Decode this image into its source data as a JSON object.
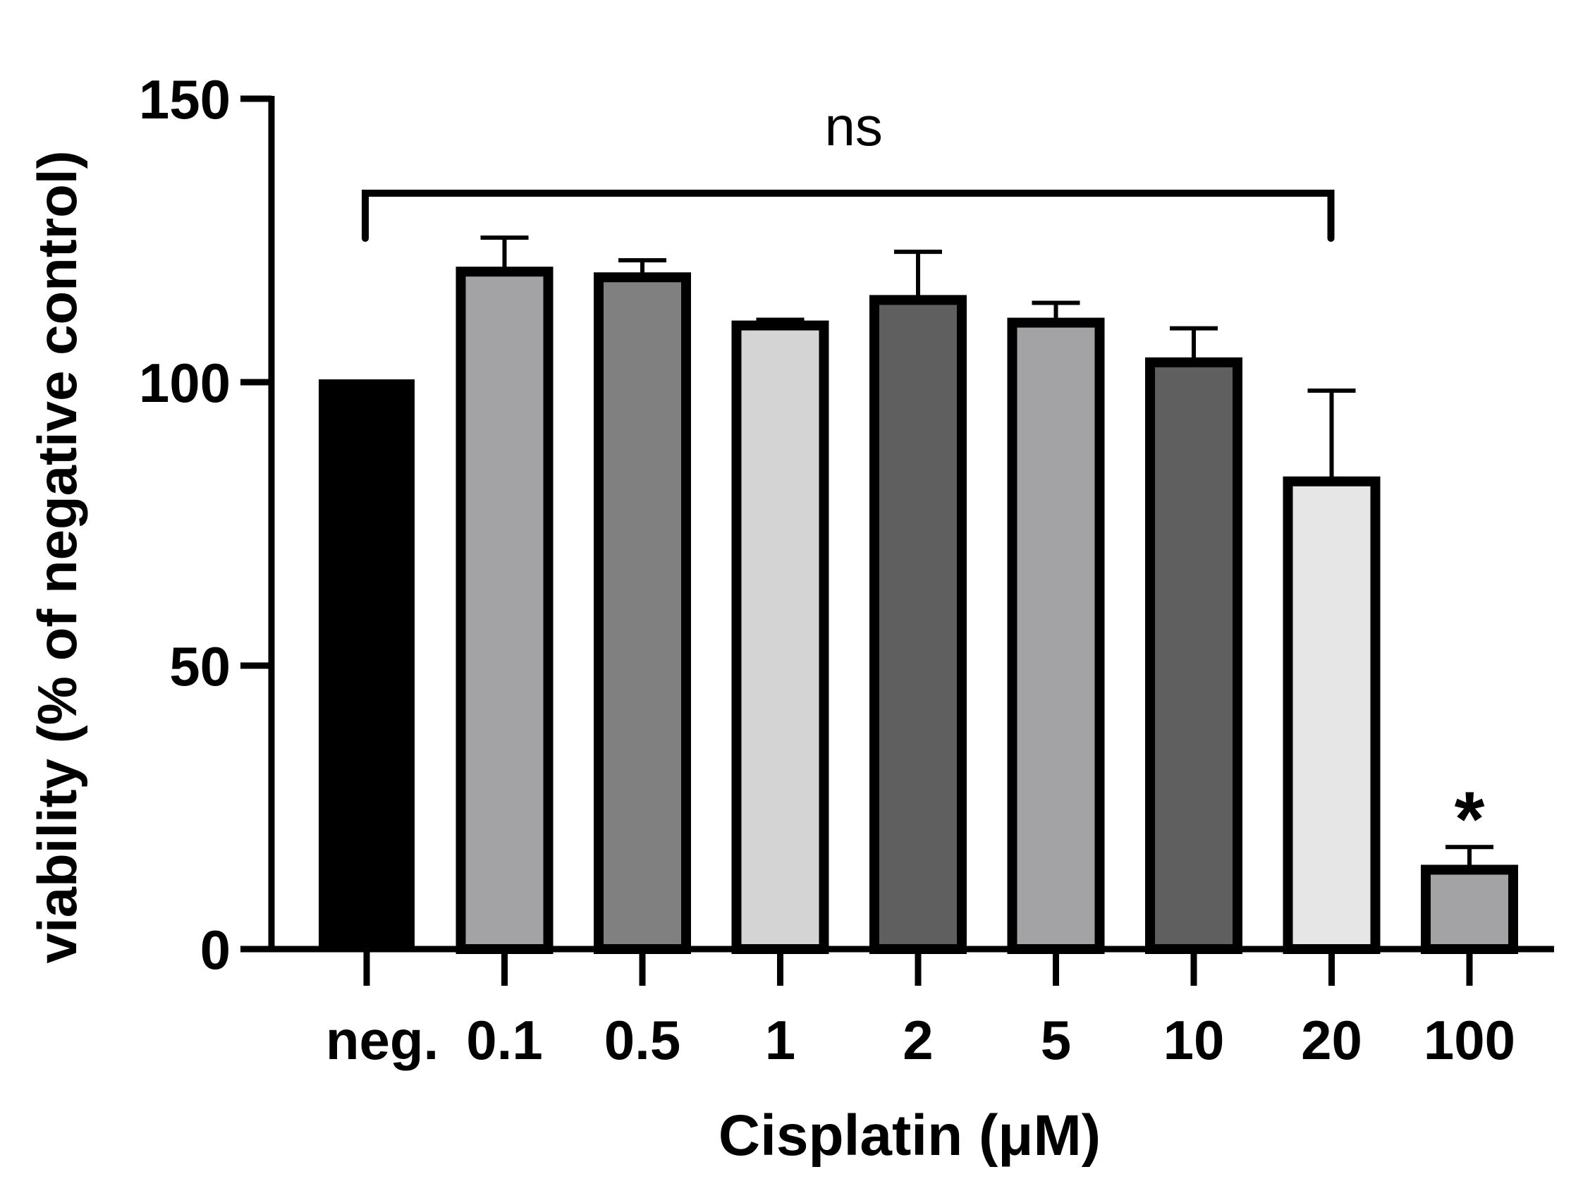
{
  "chart_data": {
    "type": "bar",
    "title": "",
    "xlabel": "Cisplatin (μM)",
    "ylabel": "viability (% of negative control)",
    "ylim": [
      0,
      150
    ],
    "yticks": [
      0,
      50,
      100,
      150
    ],
    "grid": false,
    "categories": [
      "neg.",
      "0.1",
      "0.5",
      "1",
      "2",
      "5",
      "10",
      "20",
      "100"
    ],
    "values": [
      100,
      119.5,
      118.5,
      110,
      114.5,
      110.5,
      103.5,
      82.5,
      14
    ],
    "errors": [
      0,
      6,
      3,
      1,
      8.5,
      3.5,
      6,
      16,
      4
    ],
    "bar_colors": [
      "#000000",
      "#a3a3a6",
      "#808080",
      "#d4d4d4",
      "#5f5f5f",
      "#a3a3a6",
      "#5f5f5f",
      "#e6e6e6",
      "#a3a3a6"
    ],
    "annotations": {
      "bracket_label": "ns",
      "bracket_from": "neg.",
      "bracket_to": "20",
      "significance_label": "*",
      "significance_category": "100"
    }
  }
}
